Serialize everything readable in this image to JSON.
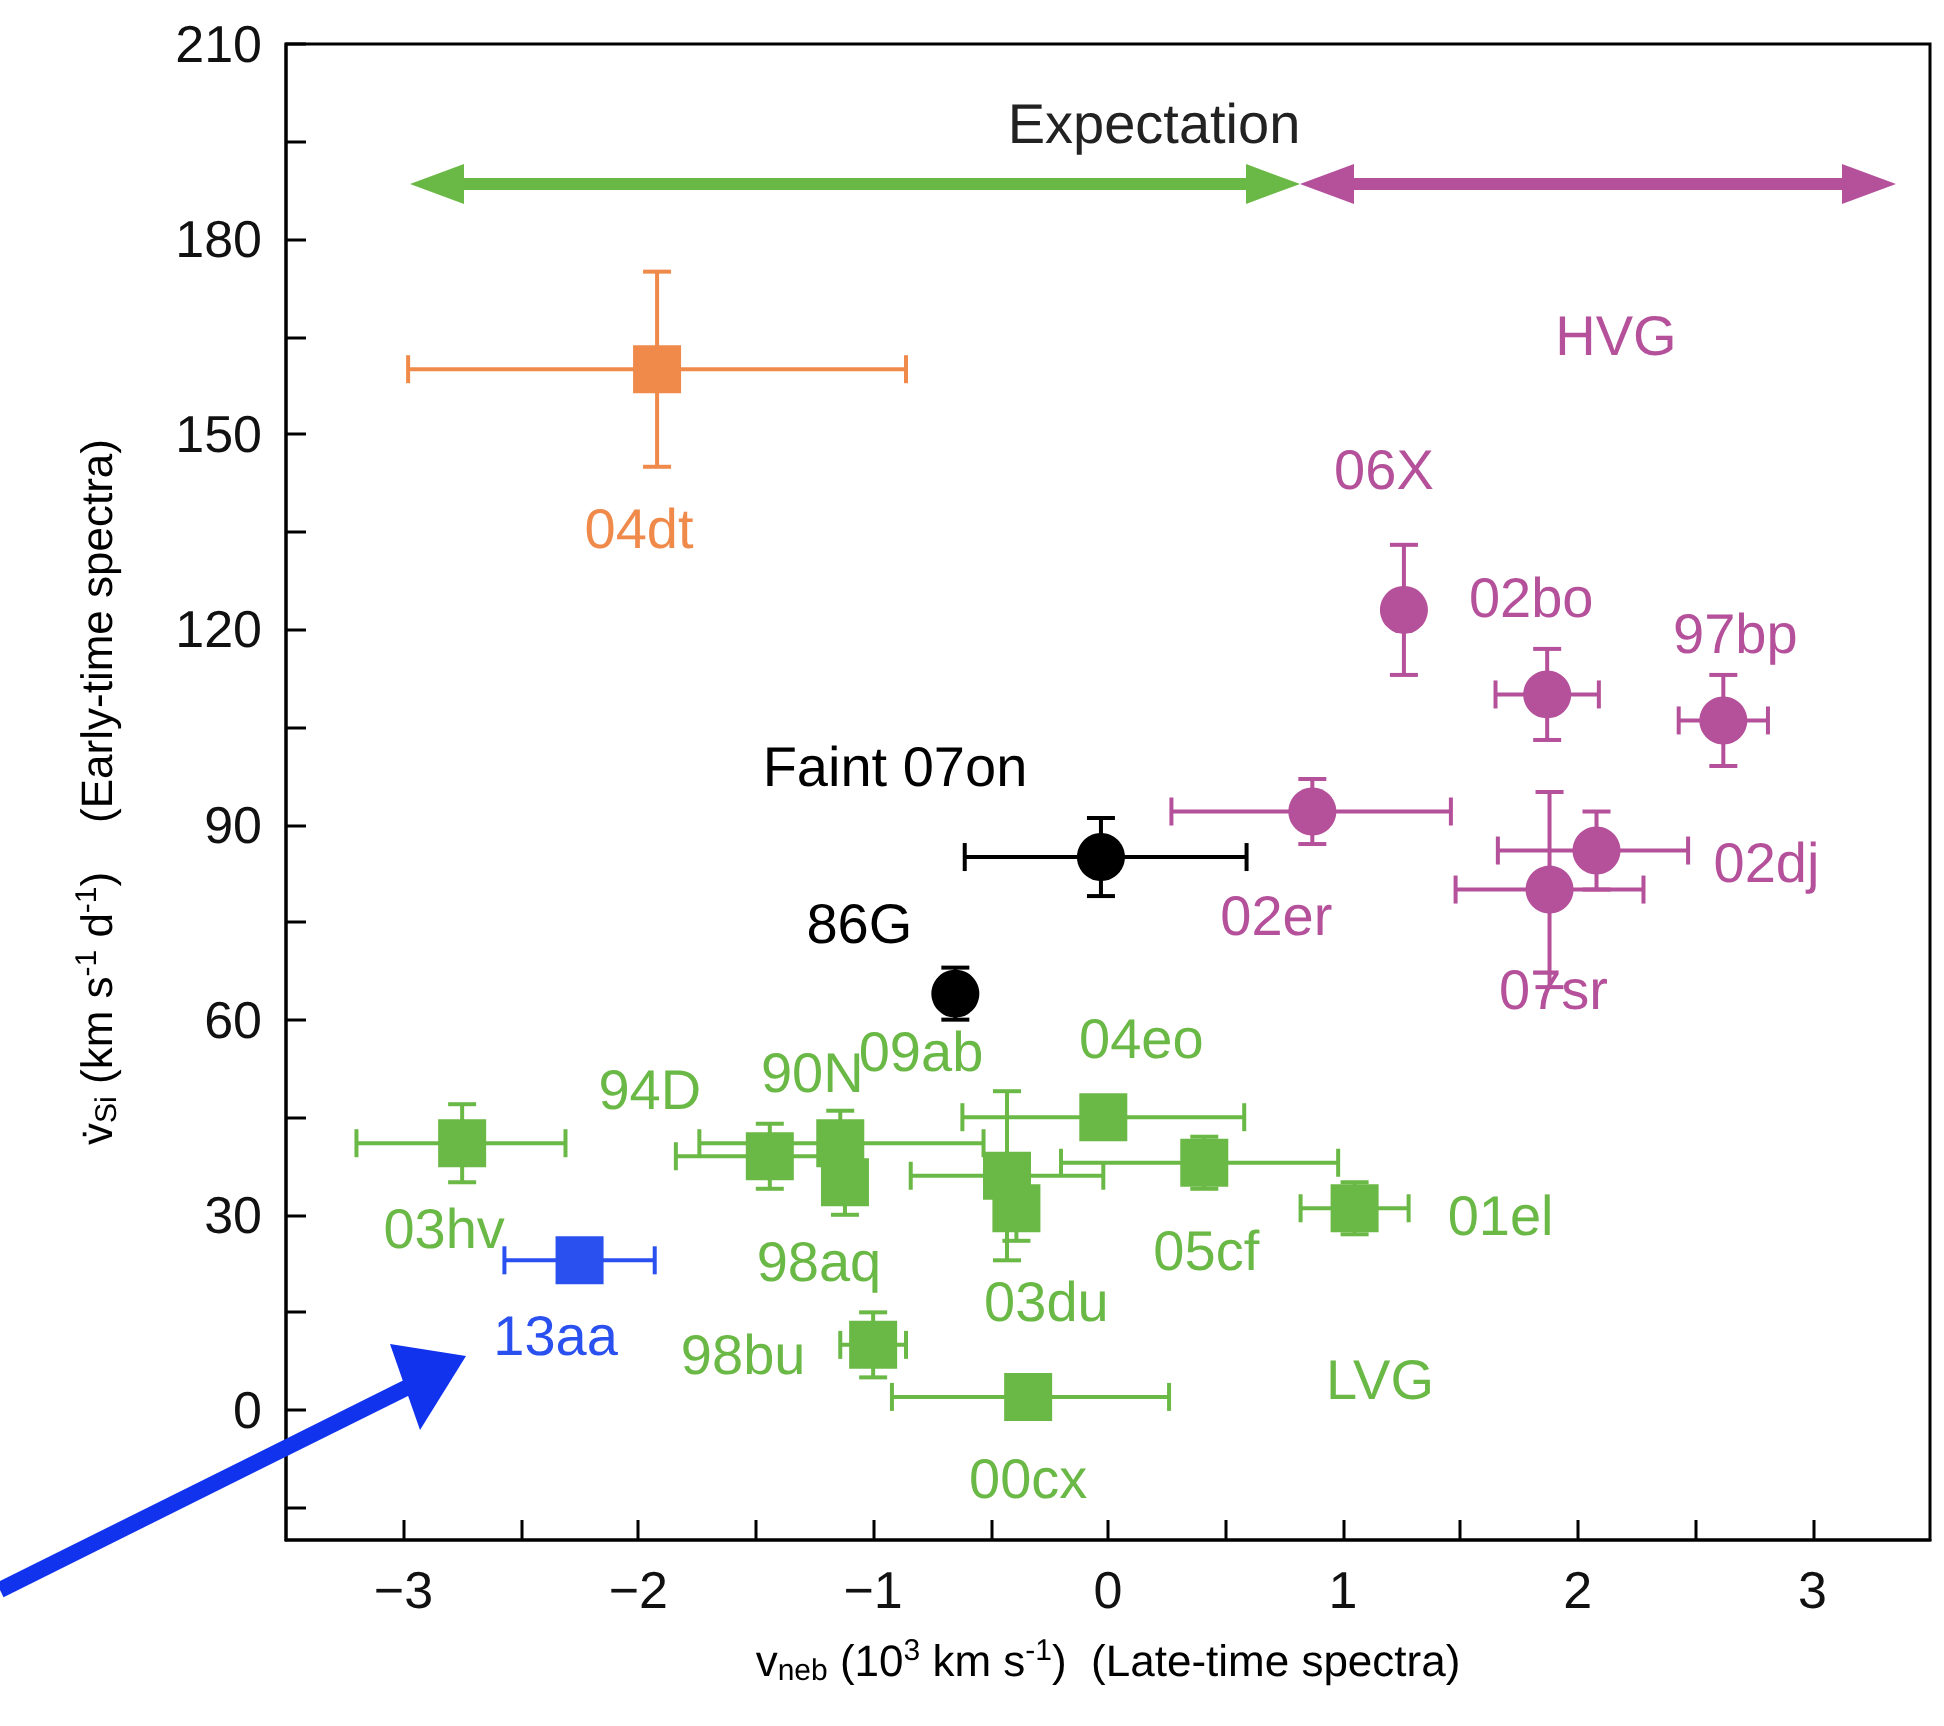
{
  "chart_data": {
    "type": "scatter",
    "xlabel": "v$_{neb}$ (10$^{3}$ km s$^{-1}$)  (Late-time spectra)",
    "ylabel": "v̇$_{Si}$ (km s$^{-1}$ d$^{-1}$)    (Early-time spectra)",
    "xlim": [
      -3.5,
      3.5
    ],
    "ylim": [
      -20,
      210
    ],
    "xticks": [
      {
        "value": -3,
        "label": "−3"
      },
      {
        "value": -2.5,
        "label": null
      },
      {
        "value": -2,
        "label": "−2"
      },
      {
        "value": -1.5,
        "label": null
      },
      {
        "value": -1,
        "label": "−1"
      },
      {
        "value": -0.5,
        "label": null
      },
      0,
      {
        "value": 0.5,
        "label": null
      },
      1,
      {
        "value": 1.5,
        "label": null
      },
      2,
      {
        "value": 2.5,
        "label": null
      },
      3
    ],
    "yticks": [
      {
        "value": -15,
        "label": null
      },
      0,
      {
        "value": 15,
        "label": null
      },
      30,
      {
        "value": 45,
        "label": null
      },
      60,
      {
        "value": 75,
        "label": null
      },
      90,
      {
        "value": 105,
        "label": null
      },
      120,
      {
        "value": 135,
        "label": null
      },
      150,
      {
        "value": 165,
        "label": null
      },
      180,
      {
        "value": 195,
        "label": null
      },
      210
    ],
    "grid": false,
    "series": [
      {
        "color": "#6ab845",
        "marker": "square",
        "x": [
          -2.75,
          -1.44,
          -1.14,
          -1.12,
          -0.43,
          -0.39,
          -0.02,
          0.41,
          1.05,
          -1.0,
          -0.34
        ],
        "values": [
          41,
          39,
          41,
          35,
          36,
          31,
          45,
          38,
          31,
          10,
          2
        ],
        "errors": [
          6,
          5,
          5,
          5,
          13,
          5,
          3,
          4,
          4,
          5,
          2
        ],
        "xerrors": [
          [
            -3.2,
            -2.31
          ],
          [
            -1.84,
            -1.05
          ],
          [
            -1.74,
            -0.53
          ],
          null,
          [
            -0.84,
            -0.02
          ],
          null,
          [
            -0.62,
            0.58
          ],
          [
            -0.2,
            0.98
          ],
          [
            0.82,
            1.28
          ],
          [
            -1.14,
            -0.86
          ],
          [
            -0.92,
            0.26
          ]
        ]
      },
      {
        "color": "#b5509a",
        "marker": "circle",
        "x": [
          1.26,
          1.87,
          2.62,
          0.87,
          2.08,
          1.88
        ],
        "values": [
          123,
          110,
          106,
          92,
          86,
          80
        ],
        "errors": [
          10,
          7,
          7,
          5,
          6,
          15
        ],
        "xerrors": [
          null,
          [
            1.65,
            2.09
          ],
          [
            2.43,
            2.81
          ],
          [
            0.27,
            1.46
          ],
          [
            1.66,
            2.47
          ],
          [
            1.48,
            2.28
          ]
        ]
      },
      {
        "color": "#f08a4b",
        "marker": "square",
        "x": [
          -1.92
        ],
        "values": [
          160
        ],
        "errors": [
          15
        ],
        "xerrors": [
          [
            -2.98,
            -0.86
          ]
        ]
      },
      {
        "color": "#000000",
        "marker": "circle",
        "x": [
          -0.03,
          -0.65
        ],
        "values": [
          85,
          64
        ],
        "errors": [
          6,
          4
        ],
        "xerrors": [
          [
            -0.61,
            0.59
          ],
          null
        ]
      },
      {
        "color": "#2a50f0",
        "marker": "square",
        "x": [
          -2.25
        ],
        "values": [
          23
        ],
        "xerrors": [
          [
            -2.57,
            -1.93
          ]
        ]
      }
    ],
    "annotations": [
      {
        "text": "04dt",
        "x": -1.92,
        "y": 160
      },
      {
        "text": "06X",
        "x": 1.26,
        "y": 123
      },
      {
        "text": "02bo",
        "x": 1.87,
        "y": 110
      },
      {
        "text": "97bp",
        "x": 2.62,
        "y": 106
      },
      {
        "text": "02er",
        "x": 0.87,
        "y": 92
      },
      {
        "text": "02dj",
        "x": 2.08,
        "y": 86
      },
      {
        "text": "07sr",
        "x": 1.88,
        "y": 80
      },
      {
        "text": "Faint 07on",
        "x": -0.03,
        "y": 85
      },
      {
        "text": "86G",
        "x": -0.65,
        "y": 64
      },
      {
        "text": "09ab",
        "x": -0.43,
        "y": 36
      },
      {
        "text": "04eo",
        "x": -0.02,
        "y": 45
      },
      {
        "text": "94D",
        "x": -1.44,
        "y": 39
      },
      {
        "text": "90N",
        "x": -1.14,
        "y": 41
      },
      {
        "text": "98aq",
        "x": -1.12,
        "y": 35
      },
      {
        "text": "03hv",
        "x": -2.75,
        "y": 41
      },
      {
        "text": "03du",
        "x": -0.39,
        "y": 31
      },
      {
        "text": "05cf",
        "x": 0.41,
        "y": 38
      },
      {
        "text": "01el",
        "x": 1.05,
        "y": 31
      },
      {
        "text": "98bu",
        "x": -1.0,
        "y": 10
      },
      {
        "text": "00cx",
        "x": -0.34,
        "y": 2
      },
      {
        "text": "13aa",
        "x": -2.25,
        "y": 23
      },
      "Expectation",
      "HVG",
      "LVG"
    ]
  }
}
